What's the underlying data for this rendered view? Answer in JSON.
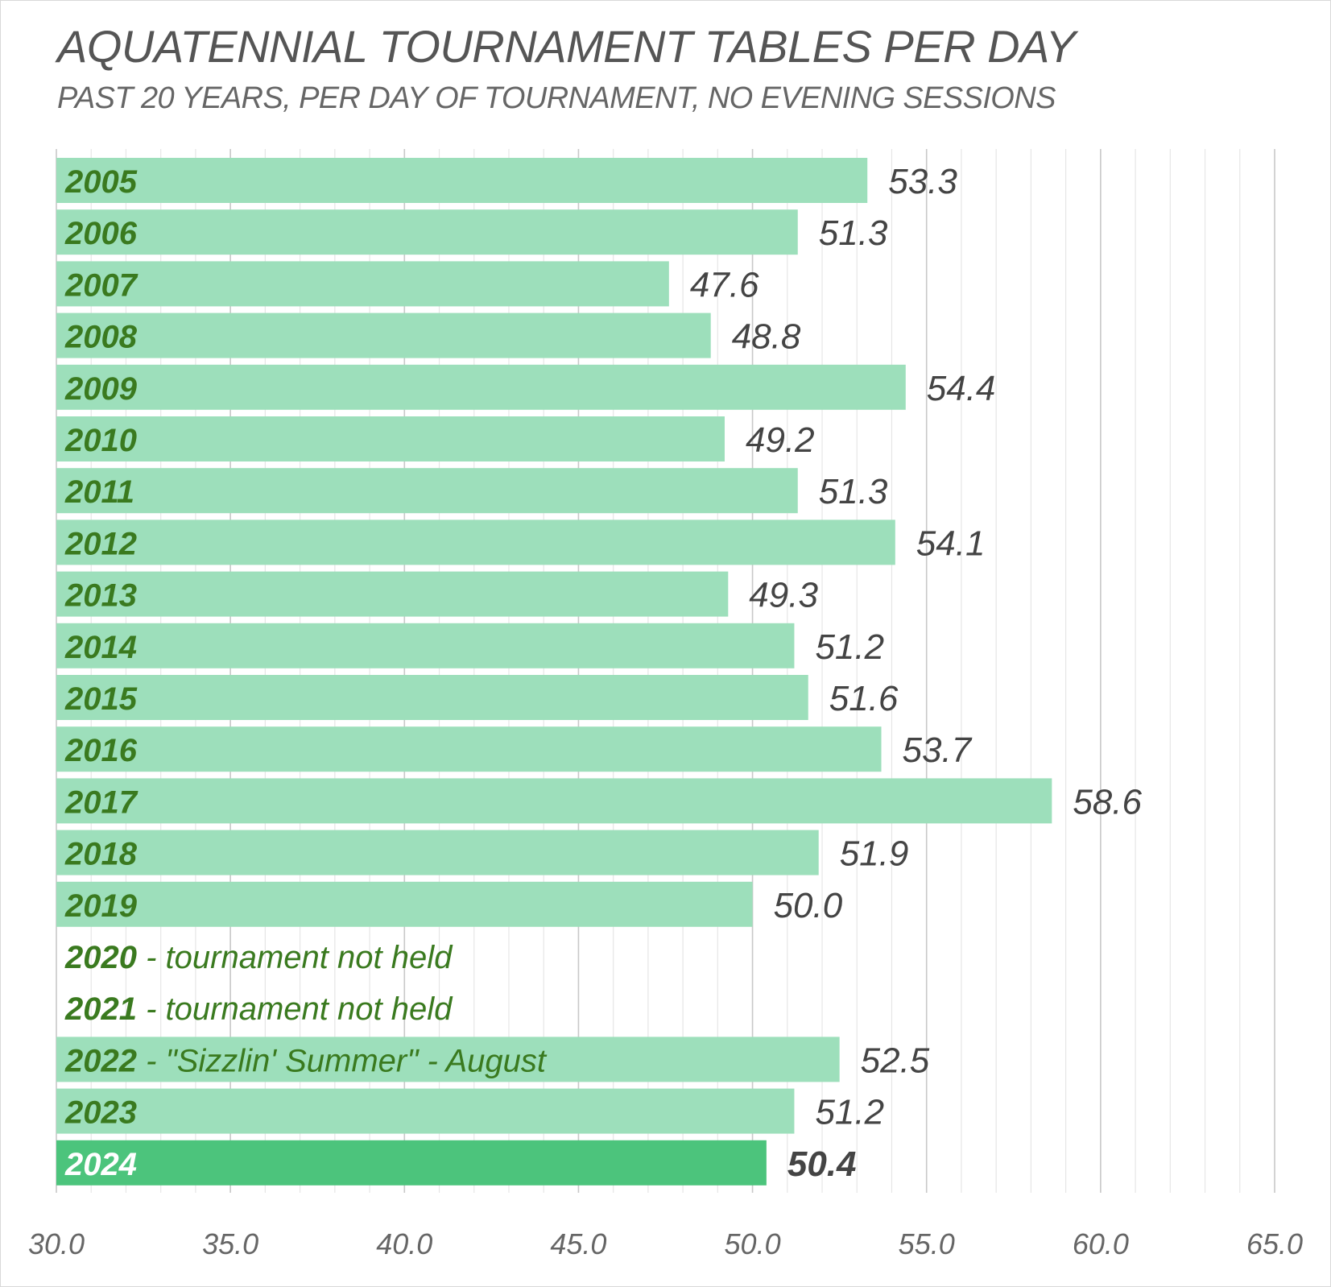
{
  "chart_data": {
    "type": "bar",
    "orientation": "horizontal",
    "title": "AQUATENNIAL TOURNAMENT TABLES PER DAY",
    "subtitle": "PAST 20 YEARS, PER DAY OF TOURNAMENT, NO EVENING SESSIONS",
    "xlim": [
      30.0,
      65.0
    ],
    "x_ticks": [
      "30.0",
      "35.0",
      "40.0",
      "45.0",
      "50.0",
      "55.0",
      "60.0",
      "65.0"
    ],
    "grid": true,
    "legend": "none",
    "categories": [
      "2005",
      "2006",
      "2007",
      "2008",
      "2009",
      "2010",
      "2011",
      "2012",
      "2013",
      "2014",
      "2015",
      "2016",
      "2017",
      "2018",
      "2019",
      "2020",
      "2021",
      "2022",
      "2023",
      "2024"
    ],
    "category_notes": [
      "",
      "",
      "",
      "",
      "",
      "",
      "",
      "",
      "",
      "",
      "",
      "",
      "",
      "",
      "",
      "- tournament not held",
      "- tournament not held",
      "- \"Sizzlin' Summer\" - August",
      "",
      ""
    ],
    "values": [
      53.3,
      51.3,
      47.6,
      48.8,
      54.4,
      49.2,
      51.3,
      54.1,
      49.3,
      51.2,
      51.6,
      53.7,
      58.6,
      51.9,
      50.0,
      null,
      null,
      52.5,
      51.2,
      50.4
    ],
    "data_labels": [
      "53.3",
      "51.3",
      "47.6",
      "48.8",
      "54.4",
      "49.2",
      "51.3",
      "54.1",
      "49.3",
      "51.2",
      "51.6",
      "53.7",
      "58.6",
      "51.9",
      "50.0",
      "",
      "",
      "52.5",
      "51.2",
      "50.4"
    ],
    "highlight_index": 19,
    "colors": {
      "bar": "#9ddfbb",
      "bar_highlight": "#4cc47c",
      "year_label": "#3a7a1f",
      "year_label_highlight": "#ffffff",
      "value_label": "#444444",
      "tick_label": "#666666",
      "grid_major": "#c8c8c8",
      "grid_minor": "#e6e6e6"
    }
  }
}
